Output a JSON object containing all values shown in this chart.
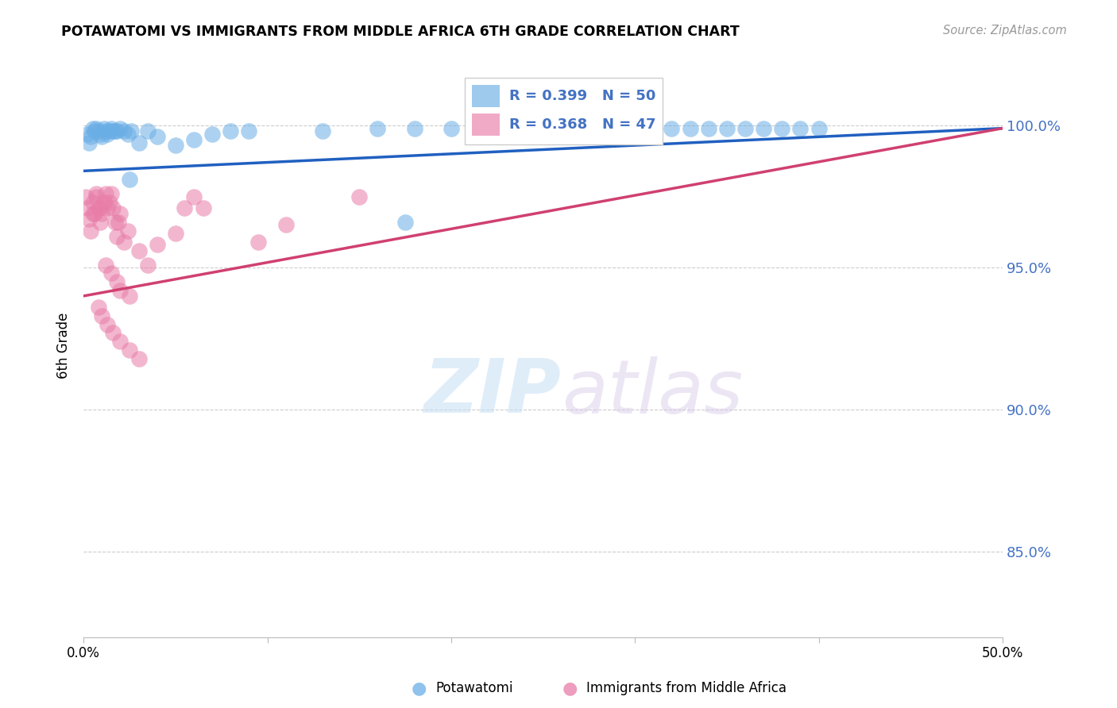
{
  "title": "POTAWATOMI VS IMMIGRANTS FROM MIDDLE AFRICA 6TH GRADE CORRELATION CHART",
  "source": "Source: ZipAtlas.com",
  "ylabel": "6th Grade",
  "ytick_labels": [
    "100.0%",
    "95.0%",
    "90.0%",
    "85.0%"
  ],
  "ytick_values": [
    1.0,
    0.95,
    0.9,
    0.85
  ],
  "xlim": [
    0.0,
    0.5
  ],
  "ylim": [
    0.82,
    1.025
  ],
  "legend_blue_label": "Potawatomi",
  "legend_pink_label": "Immigrants from Middle Africa",
  "blue_R": 0.399,
  "blue_N": 50,
  "pink_R": 0.368,
  "pink_N": 47,
  "blue_color": "#6aaee6",
  "pink_color": "#e87da8",
  "blue_line_color": "#2060c0",
  "pink_line_color": "#d04070",
  "watermark_zip": "ZIP",
  "watermark_atlas": "atlas",
  "blue_points_x": [
    0.002,
    0.003,
    0.004,
    0.005,
    0.006,
    0.007,
    0.008,
    0.009,
    0.01,
    0.011,
    0.012,
    0.013,
    0.014,
    0.015,
    0.016,
    0.017,
    0.018,
    0.02,
    0.022,
    0.024,
    0.026,
    0.03,
    0.035,
    0.04,
    0.06,
    0.07,
    0.08,
    0.09,
    0.13,
    0.16,
    0.18,
    0.2,
    0.22,
    0.24,
    0.26,
    0.28,
    0.3,
    0.32,
    0.34,
    0.36,
    0.38,
    0.4,
    0.175,
    0.025,
    0.05,
    0.31,
    0.33,
    0.35,
    0.37,
    0.39
  ],
  "blue_points_y": [
    0.997,
    0.994,
    0.996,
    0.999,
    0.998,
    0.999,
    0.998,
    0.997,
    0.996,
    0.999,
    0.998,
    0.997,
    0.998,
    0.999,
    0.998,
    0.998,
    0.998,
    0.999,
    0.998,
    0.997,
    0.998,
    0.994,
    0.998,
    0.996,
    0.995,
    0.997,
    0.998,
    0.998,
    0.998,
    0.999,
    0.999,
    0.999,
    0.999,
    0.999,
    0.999,
    0.999,
    0.999,
    0.999,
    0.999,
    0.999,
    0.999,
    0.999,
    0.966,
    0.981,
    0.993,
    0.999,
    0.999,
    0.999,
    0.999,
    0.999
  ],
  "pink_points_x": [
    0.001,
    0.002,
    0.003,
    0.004,
    0.005,
    0.006,
    0.007,
    0.008,
    0.009,
    0.01,
    0.011,
    0.012,
    0.013,
    0.014,
    0.015,
    0.016,
    0.017,
    0.018,
    0.019,
    0.02,
    0.022,
    0.024,
    0.005,
    0.007,
    0.009,
    0.012,
    0.015,
    0.018,
    0.02,
    0.025,
    0.03,
    0.035,
    0.04,
    0.05,
    0.055,
    0.008,
    0.01,
    0.013,
    0.016,
    0.02,
    0.025,
    0.03,
    0.06,
    0.065,
    0.095,
    0.11,
    0.15
  ],
  "pink_points_y": [
    0.975,
    0.971,
    0.967,
    0.963,
    0.973,
    0.969,
    0.976,
    0.971,
    0.966,
    0.969,
    0.973,
    0.976,
    0.971,
    0.973,
    0.976,
    0.971,
    0.966,
    0.961,
    0.966,
    0.969,
    0.959,
    0.963,
    0.969,
    0.975,
    0.971,
    0.951,
    0.948,
    0.945,
    0.942,
    0.94,
    0.956,
    0.951,
    0.958,
    0.962,
    0.971,
    0.936,
    0.933,
    0.93,
    0.927,
    0.924,
    0.921,
    0.918,
    0.975,
    0.971,
    0.959,
    0.965,
    0.975
  ]
}
